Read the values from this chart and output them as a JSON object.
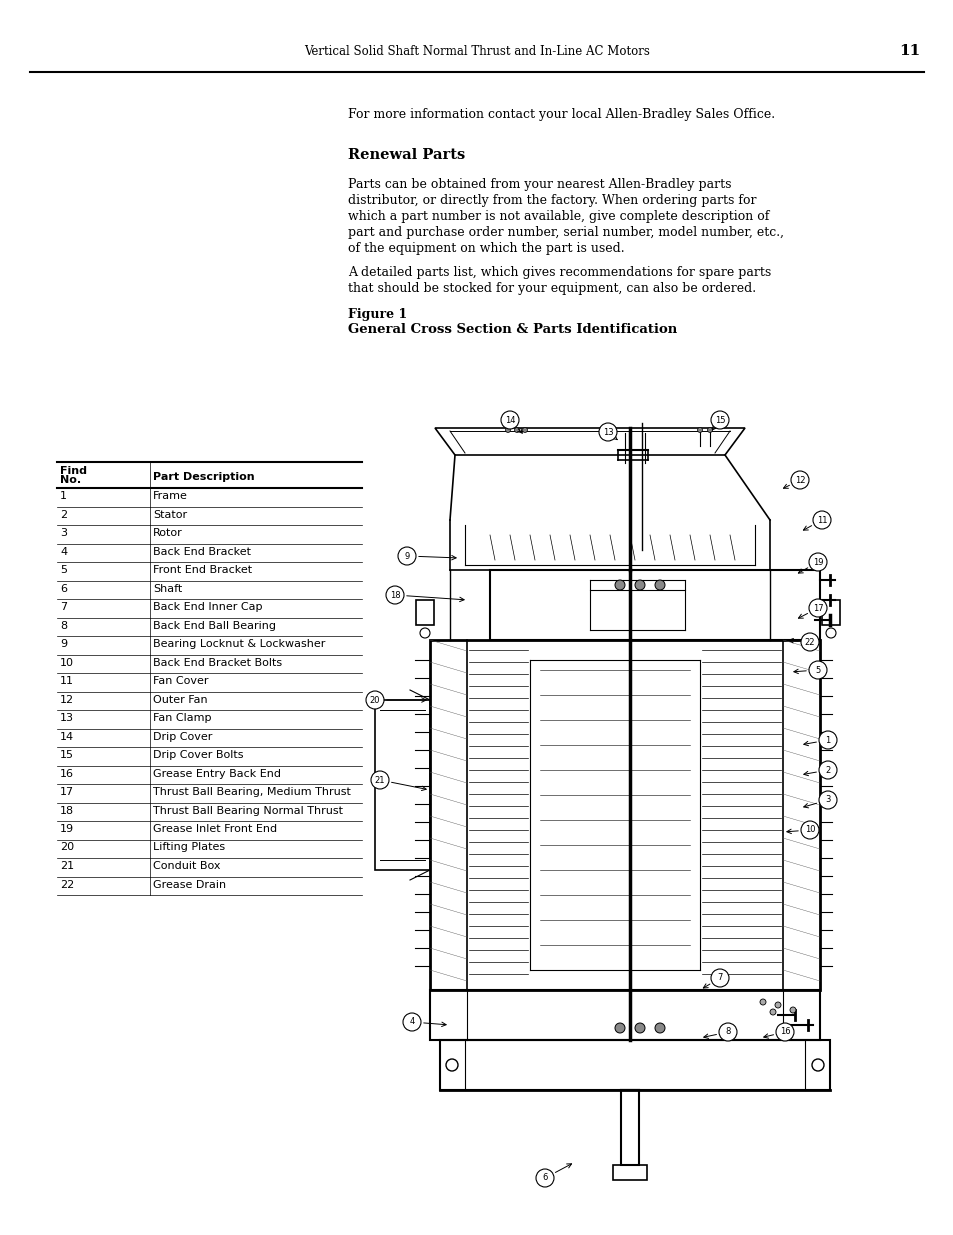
{
  "page_title": "Vertical Solid Shaft Normal Thrust and In-Line AC Motors",
  "page_number": "11",
  "intro_text": "For more information contact your local Allen-Bradley Sales Office.",
  "section_title": "Renewal Parts",
  "para1_lines": [
    "Parts can be obtained from your nearest Allen-Bradley parts",
    "distributor, or directly from the factory. When ordering parts for",
    "which a part number is not available, give complete description of",
    "part and purchase order number, serial number, model number, etc.,",
    "of the equipment on which the part is used."
  ],
  "para2_lines": [
    "A detailed parts list, which gives recommendations for spare parts",
    "that should be stocked for your equipment, can also be ordered."
  ],
  "figure_label": "Figure 1",
  "figure_caption": "General Cross Section & Parts Identification",
  "table_col1_header_line1": "Find",
  "table_col1_header_line2": "No.",
  "table_col2_header": "Part Description",
  "table_rows": [
    [
      "1",
      "Frame"
    ],
    [
      "2",
      "Stator"
    ],
    [
      "3",
      "Rotor"
    ],
    [
      "4",
      "Back End Bracket"
    ],
    [
      "5",
      "Front End Bracket"
    ],
    [
      "6",
      "Shaft"
    ],
    [
      "7",
      "Back End Inner Cap"
    ],
    [
      "8",
      "Back End Ball Bearing"
    ],
    [
      "9",
      "Bearing Locknut & Lockwasher"
    ],
    [
      "10",
      "Back End Bracket Bolts"
    ],
    [
      "11",
      "Fan Cover"
    ],
    [
      "12",
      "Outer Fan"
    ],
    [
      "13",
      "Fan Clamp"
    ],
    [
      "14",
      "Drip Cover"
    ],
    [
      "15",
      "Drip Cover Bolts"
    ],
    [
      "16",
      "Grease Entry Back End"
    ],
    [
      "17",
      "Thrust Ball Bearing, Medium Thrust"
    ],
    [
      "18",
      "Thrust Ball Bearing Normal Thrust"
    ],
    [
      "19",
      "Grease Inlet Front End"
    ],
    [
      "20",
      "Lifting Plates"
    ],
    [
      "21",
      "Conduit Box"
    ],
    [
      "22",
      "Grease Drain"
    ]
  ],
  "bg_color": "#ffffff",
  "text_color": "#000000"
}
